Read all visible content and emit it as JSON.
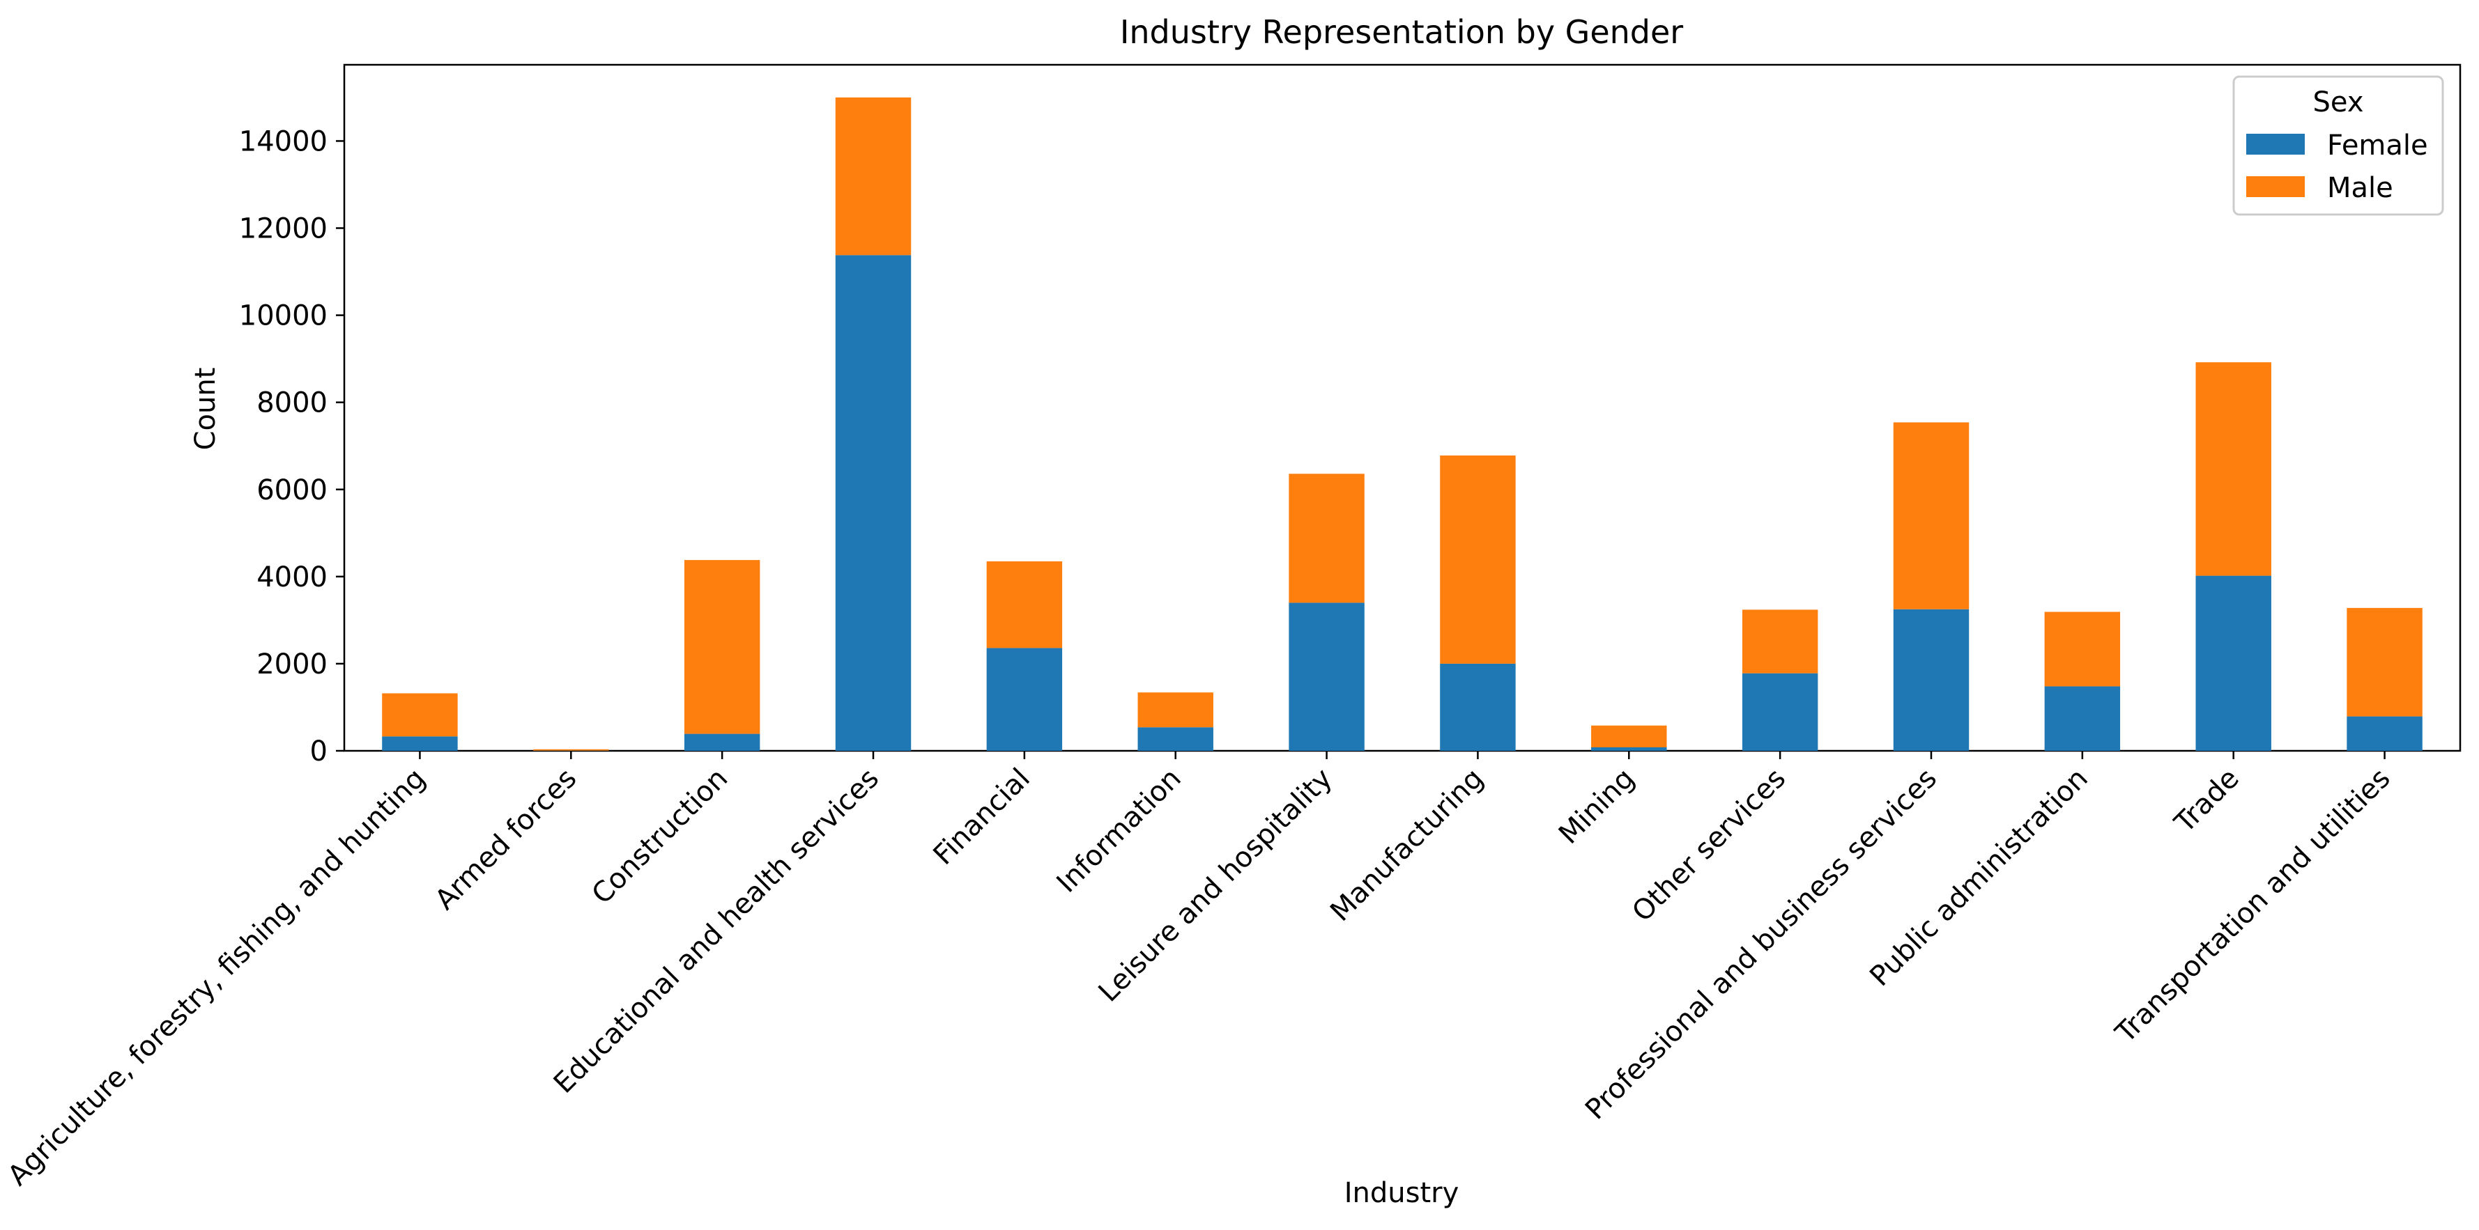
{
  "chart_data": {
    "type": "bar",
    "stacked": true,
    "title": "Industry Representation by Gender",
    "xlabel": "Industry",
    "ylabel": "Count",
    "ylim": [
      0,
      15750
    ],
    "yticks": [
      0,
      2000,
      4000,
      6000,
      8000,
      10000,
      12000,
      14000
    ],
    "grid": false,
    "legend": {
      "title": "Sex",
      "placement": "top-right"
    },
    "categories": [
      "Agriculture, forestry, fishing, and hunting",
      "Armed forces",
      "Construction",
      "Educational and health services",
      "Financial",
      "Information",
      "Leisure and hospitality",
      "Manufacturing",
      "Mining",
      "Other services",
      "Professional and business services",
      "Public administration",
      "Trade",
      "Transportation and utilities"
    ],
    "series": [
      {
        "name": "Female",
        "color": "#1f77b4",
        "values": [
          330,
          5,
          390,
          11380,
          2360,
          540,
          3400,
          2000,
          80,
          1780,
          3250,
          1480,
          4020,
          790
        ]
      },
      {
        "name": "Male",
        "color": "#ff7f0e",
        "values": [
          990,
          30,
          3990,
          3620,
          1990,
          800,
          2960,
          4780,
          500,
          1460,
          4290,
          1710,
          4900,
          2490
        ]
      }
    ]
  }
}
